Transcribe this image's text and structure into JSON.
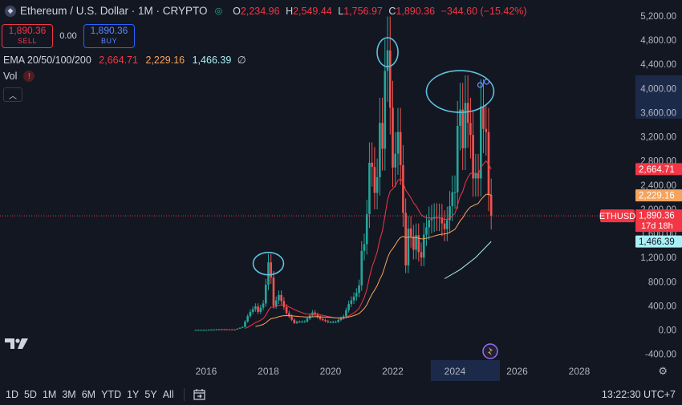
{
  "header": {
    "symbol": "Ethereum / U.S. Dollar · 1M · CRYPTO",
    "open_k": "O",
    "open": "2,234.96",
    "high_k": "H",
    "high": "2,549.44",
    "low_k": "L",
    "low": "1,756.97",
    "close_k": "C",
    "close": "1,890.36",
    "change": "−344.60 (−15.42%)"
  },
  "trade": {
    "sell_price": "1,890.36",
    "sell_label": "SELL",
    "spread": "0.00",
    "buy_price": "1,890.36",
    "buy_label": "BUY"
  },
  "indicators": {
    "ema_label": "EMA 20/50/100/200",
    "ema20": "2,664.71",
    "ema50": "2,229.16",
    "ema100": "1,466.39",
    "ema200": "∅",
    "vol_label": "Vol",
    "vol_warning": "!"
  },
  "bottom": {
    "timeframes": [
      "1D",
      "5D",
      "1M",
      "3M",
      "6M",
      "YTD",
      "1Y",
      "5Y",
      "All"
    ],
    "clock": "13:22:30 UTC+7"
  },
  "colors": {
    "up": "#26a69a",
    "down": "#ef5350",
    "ema20": "#f23645",
    "ema50": "#f7a35c",
    "ema100": "#a9f0f6",
    "annotation": "#5fc1e0",
    "background": "#131722"
  },
  "chart_data": {
    "type": "candlestick",
    "symbol": "ETHUSD",
    "ylim": [
      -400,
      5200
    ],
    "y_ticks": [
      "5,200.00",
      "4,800.00",
      "4,400.00",
      "4,000.00",
      "3,600.00",
      "3,200.00",
      "2,800.00",
      "2,400.00",
      "2,000.00",
      "1,600.00",
      "1,200.00",
      "800.00",
      "400.00",
      "0.00",
      "-400.00"
    ],
    "y_tick_values": [
      5200,
      4800,
      4400,
      4000,
      3600,
      3200,
      2800,
      2400,
      2000,
      1600,
      1200,
      800,
      400,
      0,
      -400
    ],
    "x_ticks": [
      "2016",
      "2018",
      "2020",
      "2022",
      "2024",
      "2026",
      "2028"
    ],
    "x_tick_values": [
      2016,
      2018,
      2020,
      2022,
      2024,
      2026,
      2028
    ],
    "highlighted_x": "2024",
    "price_labels": [
      {
        "name": "EMA 20",
        "value": "2,664.71",
        "price": 2664.71,
        "color": "#f23645"
      },
      {
        "name": "EMA 50",
        "value": "2,229.16",
        "price": 2229.16,
        "color": "#f7a35c"
      },
      {
        "name": "Last",
        "value": "1,890.36",
        "price": 1890.36,
        "color": "#f23645",
        "countdown": "17d 18h",
        "tag": "ETHUSD"
      },
      {
        "name": "EMA 100",
        "value": "1,466.39",
        "price": 1466.39,
        "color": "#a9f0f6"
      }
    ],
    "monthly_close": [
      {
        "t": "2015-08",
        "c": 1
      },
      {
        "t": "2016-01",
        "c": 2
      },
      {
        "t": "2016-06",
        "c": 12
      },
      {
        "t": "2016-12",
        "c": 8
      },
      {
        "t": "2017-03",
        "c": 50
      },
      {
        "t": "2017-05",
        "c": 230
      },
      {
        "t": "2017-06",
        "c": 300
      },
      {
        "t": "2017-08",
        "c": 390
      },
      {
        "t": "2017-09",
        "c": 300
      },
      {
        "t": "2017-11",
        "c": 440
      },
      {
        "t": "2017-12",
        "c": 750
      },
      {
        "t": "2018-01",
        "c": 1120
      },
      {
        "t": "2018-02",
        "c": 870
      },
      {
        "t": "2018-03",
        "c": 400
      },
      {
        "t": "2018-05",
        "c": 580
      },
      {
        "t": "2018-08",
        "c": 280
      },
      {
        "t": "2018-11",
        "c": 115
      },
      {
        "t": "2018-12",
        "c": 135
      },
      {
        "t": "2019-03",
        "c": 140
      },
      {
        "t": "2019-06",
        "c": 290
      },
      {
        "t": "2019-09",
        "c": 180
      },
      {
        "t": "2019-12",
        "c": 130
      },
      {
        "t": "2020-03",
        "c": 135
      },
      {
        "t": "2020-06",
        "c": 225
      },
      {
        "t": "2020-08",
        "c": 430
      },
      {
        "t": "2020-11",
        "c": 615
      },
      {
        "t": "2020-12",
        "c": 740
      },
      {
        "t": "2021-01",
        "c": 1310
      },
      {
        "t": "2021-02",
        "c": 1420
      },
      {
        "t": "2021-03",
        "c": 1920
      },
      {
        "t": "2021-04",
        "c": 2770
      },
      {
        "t": "2021-05",
        "c": 2700
      },
      {
        "t": "2021-06",
        "c": 2270
      },
      {
        "t": "2021-07",
        "c": 2530
      },
      {
        "t": "2021-08",
        "c": 3430
      },
      {
        "t": "2021-09",
        "c": 3000
      },
      {
        "t": "2021-10",
        "c": 4290
      },
      {
        "t": "2021-11",
        "c": 4630
      },
      {
        "t": "2021-12",
        "c": 3680
      },
      {
        "t": "2022-01",
        "c": 2690
      },
      {
        "t": "2022-02",
        "c": 2920
      },
      {
        "t": "2022-03",
        "c": 3280
      },
      {
        "t": "2022-04",
        "c": 2730
      },
      {
        "t": "2022-05",
        "c": 1940
      },
      {
        "t": "2022-06",
        "c": 1070
      },
      {
        "t": "2022-07",
        "c": 1680
      },
      {
        "t": "2022-08",
        "c": 1550
      },
      {
        "t": "2022-09",
        "c": 1330
      },
      {
        "t": "2022-10",
        "c": 1570
      },
      {
        "t": "2022-11",
        "c": 1290
      },
      {
        "t": "2022-12",
        "c": 1200
      },
      {
        "t": "2023-01",
        "c": 1580
      },
      {
        "t": "2023-03",
        "c": 1820
      },
      {
        "t": "2023-05",
        "c": 1870
      },
      {
        "t": "2023-07",
        "c": 1860
      },
      {
        "t": "2023-09",
        "c": 1670
      },
      {
        "t": "2023-10",
        "c": 1820
      },
      {
        "t": "2023-11",
        "c": 2050
      },
      {
        "t": "2023-12",
        "c": 2280
      },
      {
        "t": "2024-01",
        "c": 2280
      },
      {
        "t": "2024-02",
        "c": 3380
      },
      {
        "t": "2024-03",
        "c": 3650
      },
      {
        "t": "2024-04",
        "c": 3010
      },
      {
        "t": "2024-05",
        "c": 3760
      },
      {
        "t": "2024-06",
        "c": 3430
      },
      {
        "t": "2024-07",
        "c": 3230
      },
      {
        "t": "2024-08",
        "c": 2510
      },
      {
        "t": "2024-09",
        "c": 2600
      },
      {
        "t": "2024-10",
        "c": 2510
      },
      {
        "t": "2024-11",
        "c": 3700
      },
      {
        "t": "2024-12",
        "c": 3330
      },
      {
        "t": "2025-01",
        "c": 3280
      },
      {
        "t": "2025-02",
        "c": 2235
      },
      {
        "t": "2025-03",
        "c": 1890
      }
    ],
    "ema100_tail": [
      {
        "t": "2023-09",
        "v": 850
      },
      {
        "t": "2024-03",
        "v": 1000
      },
      {
        "t": "2024-09",
        "v": 1200
      },
      {
        "t": "2025-03",
        "v": 1466
      }
    ],
    "annotations": [
      {
        "type": "circle",
        "t": "2018-01",
        "price": 1100
      },
      {
        "type": "circle",
        "t": "2021-11",
        "price": 4600
      },
      {
        "type": "circle",
        "t": "2024-03",
        "price": 3950
      }
    ]
  }
}
